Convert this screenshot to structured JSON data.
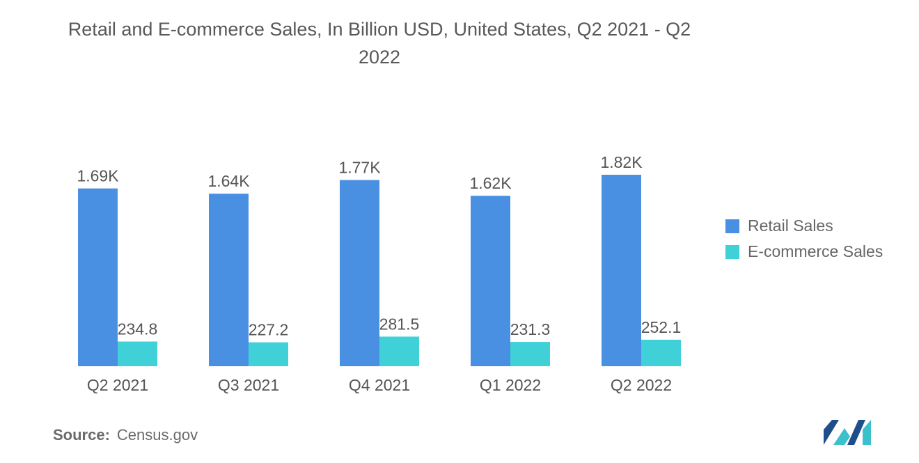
{
  "chart_data": {
    "type": "bar",
    "title": "Retail and E-commerce Sales, In Billion USD, United States, Q2 2021 - Q2 2022",
    "categories": [
      "Q2 2021",
      "Q3 2021",
      "Q4 2021",
      "Q1 2022",
      "Q2 2022"
    ],
    "series": [
      {
        "name": "Retail Sales",
        "color": "#4a90e2",
        "values": [
          1690,
          1640,
          1770,
          1620,
          1820
        ],
        "labels": [
          "1.69K",
          "1.64K",
          "1.77K",
          "1.62K",
          "1.82K"
        ]
      },
      {
        "name": "E-commerce Sales",
        "color": "#40d0d8",
        "values": [
          234.8,
          227.2,
          281.5,
          231.3,
          252.1
        ],
        "labels": [
          "234.8",
          "227.2",
          "281.5",
          "231.3",
          "252.1"
        ]
      }
    ],
    "ylim": [
      0,
      1900
    ],
    "grid": false,
    "legend_position": "right"
  },
  "source": {
    "label": "Source:",
    "value": "Census.gov"
  },
  "logo": {
    "icon": "mordor-intelligence-logo-icon",
    "colors": [
      "#1e4f8a",
      "#3cc0cc"
    ]
  }
}
